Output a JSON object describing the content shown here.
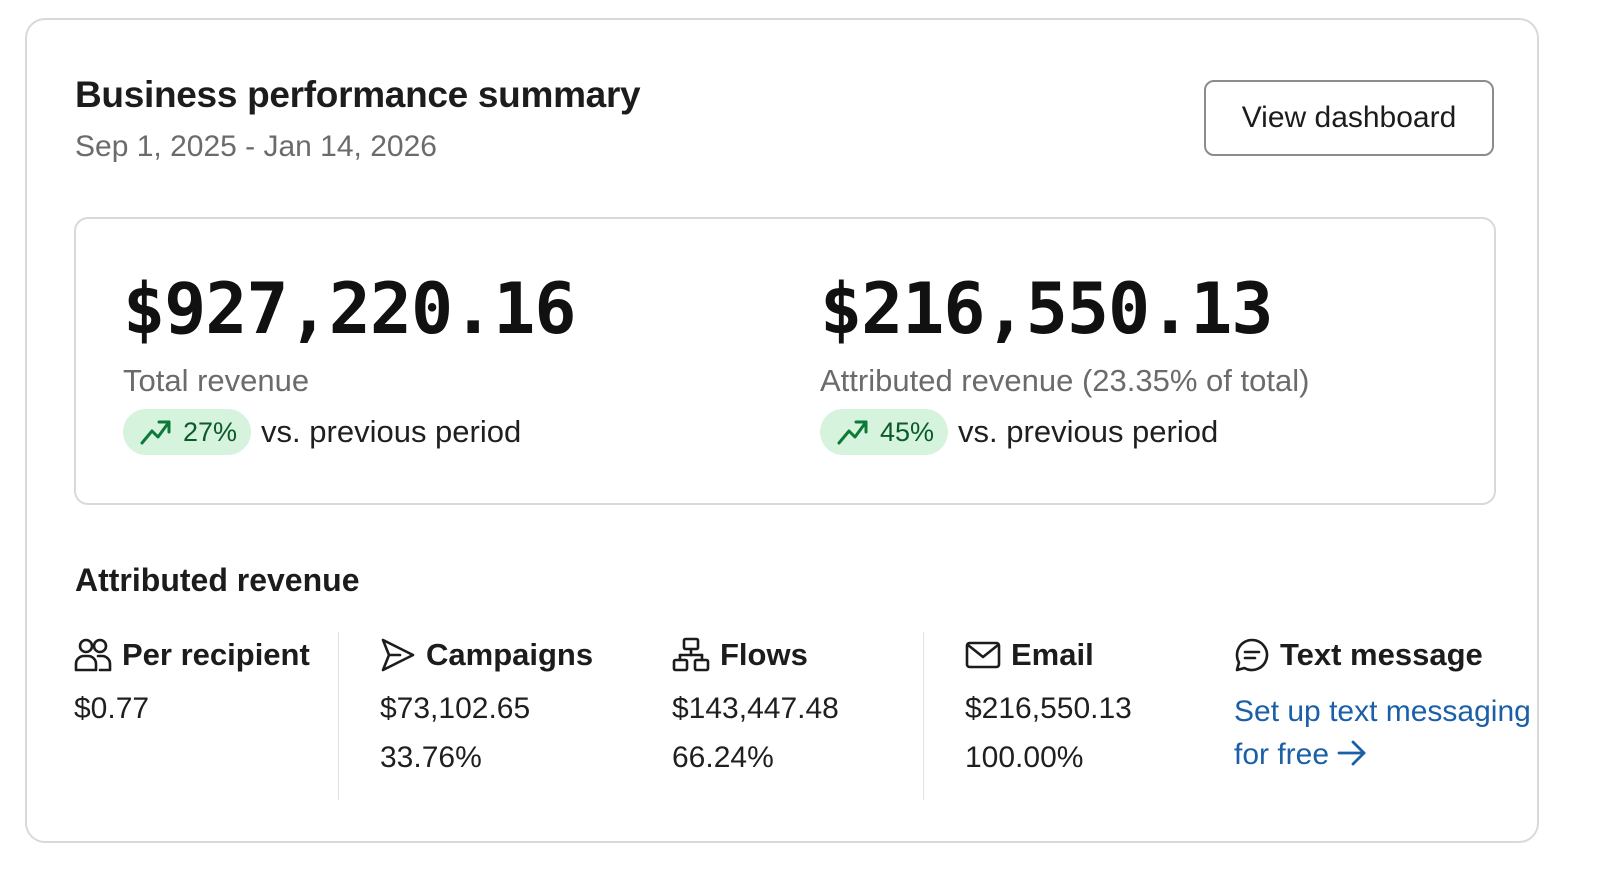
{
  "header": {
    "title": "Business performance summary",
    "date_range": "Sep 1, 2025 - Jan 14, 2026",
    "dashboard_button": "View dashboard"
  },
  "kpis": [
    {
      "value": "$927,220.16",
      "label": "Total revenue",
      "delta": "27%",
      "delta_suffix": "vs. previous period",
      "trend_icon": "trending-up-icon"
    },
    {
      "value": "$216,550.13",
      "label": "Attributed revenue (23.35% of total)",
      "delta": "45%",
      "delta_suffix": "vs. previous period",
      "trend_icon": "trending-up-icon"
    }
  ],
  "attributed": {
    "title": "Attributed revenue",
    "metrics": [
      {
        "label": "Per recipient",
        "icon": "users-icon",
        "value": "$0.77"
      },
      {
        "label": "Campaigns",
        "icon": "send-icon",
        "value": "$73,102.65",
        "share": "33.76%"
      },
      {
        "label": "Flows",
        "icon": "flow-icon",
        "value": "$143,447.48",
        "share": "66.24%"
      },
      {
        "label": "Email",
        "icon": "mail-icon",
        "value": "$216,550.13",
        "share": "100.00%"
      },
      {
        "label": "Text message",
        "icon": "message-icon",
        "link": "Set up text messaging for free"
      }
    ]
  },
  "colors": {
    "pill_bg": "#d5f3dd",
    "pill_text": "#0c5a2a",
    "link": "#1b5fa8",
    "muted_text": "#6b6b6b",
    "border": "#d9d9d9"
  }
}
